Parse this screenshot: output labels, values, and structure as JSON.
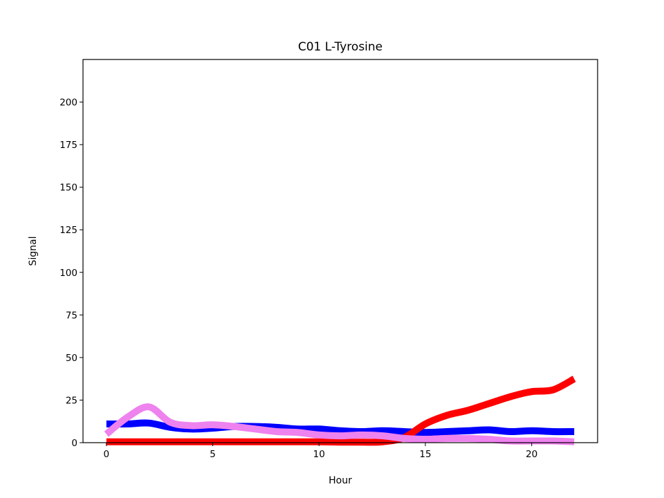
{
  "chart_data": {
    "type": "line",
    "title": "C01 L-Tyrosine",
    "xlabel": "Hour",
    "ylabel": "Signal",
    "xlim": [
      -1.1,
      23.1
    ],
    "ylim": [
      0,
      225
    ],
    "xticks": [
      0,
      5,
      10,
      15,
      20
    ],
    "yticks": [
      0,
      25,
      50,
      75,
      100,
      125,
      150,
      175,
      200
    ],
    "grid": false,
    "x": [
      0,
      1,
      2,
      3,
      4,
      5,
      6,
      7,
      8,
      9,
      10,
      11,
      12,
      13,
      14,
      15,
      16,
      17,
      18,
      19,
      20,
      21,
      22
    ],
    "series": [
      {
        "color": "#0000ff",
        "values": [
          11,
          11,
          11.5,
          9,
          8,
          8.5,
          9.5,
          9.5,
          9,
          8,
          8,
          7,
          6.5,
          7,
          6.5,
          6,
          6.5,
          7,
          7.5,
          6.5,
          7,
          6.5,
          6.5
        ]
      },
      {
        "color": "#ff0000",
        "values": [
          0.5,
          0.5,
          0.5,
          0.5,
          0.5,
          0.5,
          0.5,
          0.5,
          0.5,
          0.5,
          0.5,
          0.3,
          0.3,
          0.5,
          3,
          11,
          16,
          19,
          23,
          27,
          30,
          31,
          37.5
        ]
      },
      {
        "color": "#ee82ee",
        "values": [
          5,
          15,
          21,
          12,
          10,
          10.5,
          9.5,
          8,
          6.5,
          6,
          4.5,
          4,
          4.5,
          4,
          2.5,
          2,
          2.5,
          2.5,
          2,
          1,
          1,
          1,
          0.5
        ]
      }
    ]
  }
}
